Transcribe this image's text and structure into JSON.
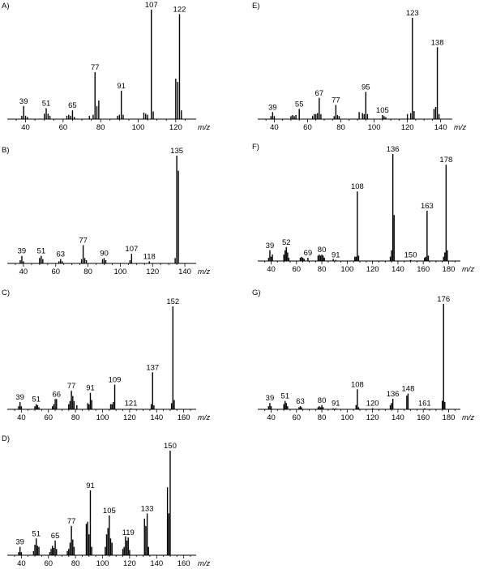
{
  "chart_data": [
    {
      "panel": "A)",
      "type": "bar",
      "xlabel": "m/z",
      "xlim": [
        32,
        130
      ],
      "xticks": [
        40,
        60,
        80,
        100,
        120
      ],
      "ylim": [
        0,
        100
      ],
      "peaks": [
        [
          38,
          3
        ],
        [
          39,
          12
        ],
        [
          40,
          3
        ],
        [
          41,
          2
        ],
        [
          50,
          5
        ],
        [
          51,
          10
        ],
        [
          52,
          5
        ],
        [
          53,
          3
        ],
        [
          62,
          3
        ],
        [
          63,
          4
        ],
        [
          64,
          3
        ],
        [
          65,
          8
        ],
        [
          66,
          2
        ],
        [
          74,
          3
        ],
        [
          76,
          4
        ],
        [
          77,
          43
        ],
        [
          78,
          12
        ],
        [
          79,
          17
        ],
        [
          89,
          3
        ],
        [
          90,
          4
        ],
        [
          91,
          26
        ],
        [
          92,
          4
        ],
        [
          103,
          6
        ],
        [
          104,
          5
        ],
        [
          105,
          4
        ],
        [
          107,
          100
        ],
        [
          108,
          7
        ],
        [
          120,
          37
        ],
        [
          121,
          34
        ],
        [
          122,
          96
        ],
        [
          123,
          8
        ]
      ],
      "labels": [
        {
          "mz": 39,
          "text": "39"
        },
        {
          "mz": 51,
          "text": "51"
        },
        {
          "mz": 65,
          "text": "65"
        },
        {
          "mz": 77,
          "text": "77"
        },
        {
          "mz": 91,
          "text": "91"
        },
        {
          "mz": 107,
          "text": "107"
        },
        {
          "mz": 122,
          "text": "122"
        }
      ]
    },
    {
      "panel": "B)",
      "type": "bar",
      "xlabel": "m/z",
      "xlim": [
        32,
        146
      ],
      "xticks": [
        40,
        60,
        80,
        100,
        120,
        140
      ],
      "ylim": [
        0,
        100
      ],
      "peaks": [
        [
          38,
          3
        ],
        [
          39,
          7
        ],
        [
          40,
          2
        ],
        [
          50,
          5
        ],
        [
          51,
          7
        ],
        [
          52,
          4
        ],
        [
          62,
          2
        ],
        [
          63,
          4
        ],
        [
          64,
          2
        ],
        [
          76,
          4
        ],
        [
          77,
          17
        ],
        [
          78,
          5
        ],
        [
          79,
          3
        ],
        [
          89,
          4
        ],
        [
          90,
          5
        ],
        [
          91,
          3
        ],
        [
          106,
          3
        ],
        [
          107,
          9
        ],
        [
          118,
          2
        ],
        [
          134,
          5
        ],
        [
          135,
          100
        ],
        [
          136,
          86
        ]
      ],
      "labels": [
        {
          "mz": 39,
          "text": "39"
        },
        {
          "mz": 51,
          "text": "51"
        },
        {
          "mz": 63,
          "text": "63"
        },
        {
          "mz": 77,
          "text": "77"
        },
        {
          "mz": 90,
          "text": "90"
        },
        {
          "mz": 107,
          "text": "107"
        },
        {
          "mz": 118,
          "text": "118"
        },
        {
          "mz": 135,
          "text": "135"
        }
      ]
    },
    {
      "panel": "C)",
      "type": "bar",
      "xlabel": "m/z",
      "xlim": [
        32,
        168
      ],
      "xticks": [
        40,
        60,
        80,
        100,
        120,
        140,
        160
      ],
      "ylim": [
        0,
        100
      ],
      "peaks": [
        [
          38,
          3
        ],
        [
          39,
          7
        ],
        [
          40,
          3
        ],
        [
          50,
          3
        ],
        [
          51,
          5
        ],
        [
          52,
          4
        ],
        [
          53,
          2
        ],
        [
          63,
          3
        ],
        [
          64,
          5
        ],
        [
          65,
          10
        ],
        [
          66,
          10
        ],
        [
          75,
          5
        ],
        [
          76,
          8
        ],
        [
          77,
          18
        ],
        [
          78,
          13
        ],
        [
          79,
          8
        ],
        [
          81,
          4
        ],
        [
          89,
          6
        ],
        [
          90,
          5
        ],
        [
          91,
          16
        ],
        [
          92,
          9
        ],
        [
          106,
          5
        ],
        [
          107,
          5
        ],
        [
          108,
          7
        ],
        [
          109,
          24
        ],
        [
          121,
          1
        ],
        [
          136,
          5
        ],
        [
          137,
          36
        ],
        [
          138,
          4
        ],
        [
          151,
          6
        ],
        [
          152,
          100
        ],
        [
          153,
          9
        ]
      ],
      "labels": [
        {
          "mz": 39,
          "text": "39"
        },
        {
          "mz": 51,
          "text": "51"
        },
        {
          "mz": 66,
          "text": "66"
        },
        {
          "mz": 77,
          "text": "77"
        },
        {
          "mz": 91,
          "text": "91"
        },
        {
          "mz": 109,
          "text": "109"
        },
        {
          "mz": 121,
          "text": "121"
        },
        {
          "mz": 137,
          "text": "137"
        },
        {
          "mz": 152,
          "text": "152"
        }
      ]
    },
    {
      "panel": "D)",
      "type": "bar",
      "xlabel": "m/z",
      "xlim": [
        32,
        168
      ],
      "xticks": [
        40,
        60,
        80,
        100,
        120,
        140,
        160
      ],
      "ylim": [
        0,
        100
      ],
      "peaks": [
        [
          38,
          3
        ],
        [
          39,
          8
        ],
        [
          40,
          3
        ],
        [
          49,
          4
        ],
        [
          50,
          10
        ],
        [
          51,
          16
        ],
        [
          52,
          9
        ],
        [
          53,
          8
        ],
        [
          61,
          3
        ],
        [
          62,
          6
        ],
        [
          63,
          9
        ],
        [
          64,
          7
        ],
        [
          65,
          14
        ],
        [
          66,
          6
        ],
        [
          74,
          4
        ],
        [
          75,
          6
        ],
        [
          76,
          12
        ],
        [
          77,
          28
        ],
        [
          78,
          15
        ],
        [
          79,
          8
        ],
        [
          88,
          30
        ],
        [
          89,
          32
        ],
        [
          90,
          20
        ],
        [
          91,
          62
        ],
        [
          92,
          8
        ],
        [
          102,
          8
        ],
        [
          103,
          20
        ],
        [
          104,
          26
        ],
        [
          105,
          38
        ],
        [
          106,
          16
        ],
        [
          107,
          12
        ],
        [
          115,
          6
        ],
        [
          116,
          8
        ],
        [
          117,
          18
        ],
        [
          118,
          14
        ],
        [
          119,
          17
        ],
        [
          120,
          5
        ],
        [
          131,
          35
        ],
        [
          132,
          28
        ],
        [
          133,
          40
        ],
        [
          134,
          8
        ],
        [
          148,
          65
        ],
        [
          149,
          40
        ],
        [
          150,
          100
        ]
      ],
      "labels": [
        {
          "mz": 39,
          "text": "39"
        },
        {
          "mz": 51,
          "text": "51"
        },
        {
          "mz": 65,
          "text": "65"
        },
        {
          "mz": 77,
          "text": "77"
        },
        {
          "mz": 91,
          "text": "91"
        },
        {
          "mz": 105,
          "text": "105"
        },
        {
          "mz": 119,
          "text": "119"
        },
        {
          "mz": 133,
          "text": "133"
        },
        {
          "mz": 150,
          "text": "150"
        }
      ]
    },
    {
      "panel": "E)",
      "type": "bar",
      "xlabel": "m/z",
      "xlim": [
        32,
        146
      ],
      "xticks": [
        40,
        60,
        80,
        100,
        120,
        140
      ],
      "ylim": [
        0,
        100
      ],
      "peaks": [
        [
          38,
          3
        ],
        [
          39,
          7
        ],
        [
          40,
          3
        ],
        [
          50,
          3
        ],
        [
          51,
          4
        ],
        [
          52,
          3
        ],
        [
          53,
          4
        ],
        [
          55,
          10
        ],
        [
          63,
          3
        ],
        [
          64,
          5
        ],
        [
          65,
          5
        ],
        [
          66,
          6
        ],
        [
          67,
          21
        ],
        [
          68,
          5
        ],
        [
          76,
          3
        ],
        [
          77,
          14
        ],
        [
          78,
          4
        ],
        [
          79,
          3
        ],
        [
          91,
          7
        ],
        [
          93,
          6
        ],
        [
          94,
          5
        ],
        [
          95,
          27
        ],
        [
          96,
          5
        ],
        [
          105,
          4
        ],
        [
          106,
          3
        ],
        [
          107,
          2
        ],
        [
          120,
          5
        ],
        [
          122,
          6
        ],
        [
          123,
          100
        ],
        [
          124,
          8
        ],
        [
          136,
          10
        ],
        [
          137,
          12
        ],
        [
          138,
          71
        ],
        [
          139,
          5
        ]
      ],
      "labels": [
        {
          "mz": 39,
          "text": "39"
        },
        {
          "mz": 55,
          "text": "55"
        },
        {
          "mz": 67,
          "text": "67"
        },
        {
          "mz": 77,
          "text": "77"
        },
        {
          "mz": 95,
          "text": "95"
        },
        {
          "mz": 105,
          "text": "105"
        },
        {
          "mz": 123,
          "text": "123"
        },
        {
          "mz": 138,
          "text": "138"
        }
      ]
    },
    {
      "panel": "F)",
      "type": "bar",
      "xlabel": "m/z",
      "xlim": [
        32,
        188
      ],
      "xticks": [
        40,
        60,
        80,
        100,
        120,
        140,
        160,
        180
      ],
      "ylim": [
        0,
        100
      ],
      "peaks": [
        [
          38,
          3
        ],
        [
          39,
          10
        ],
        [
          40,
          4
        ],
        [
          41,
          6
        ],
        [
          50,
          6
        ],
        [
          51,
          10
        ],
        [
          52,
          13
        ],
        [
          53,
          8
        ],
        [
          54,
          3
        ],
        [
          63,
          3
        ],
        [
          64,
          4
        ],
        [
          65,
          3
        ],
        [
          66,
          2
        ],
        [
          69,
          3
        ],
        [
          77,
          5
        ],
        [
          78,
          6
        ],
        [
          79,
          5
        ],
        [
          80,
          6
        ],
        [
          81,
          5
        ],
        [
          82,
          3
        ],
        [
          89,
          2
        ],
        [
          91,
          1
        ],
        [
          106,
          4
        ],
        [
          107,
          4
        ],
        [
          108,
          65
        ],
        [
          109,
          5
        ],
        [
          134,
          4
        ],
        [
          135,
          10
        ],
        [
          136,
          100
        ],
        [
          137,
          43
        ],
        [
          150,
          1
        ],
        [
          161,
          3
        ],
        [
          162,
          4
        ],
        [
          163,
          47
        ],
        [
          164,
          5
        ],
        [
          176,
          4
        ],
        [
          177,
          8
        ],
        [
          178,
          90
        ],
        [
          179,
          10
        ]
      ],
      "labels": [
        {
          "mz": 39,
          "text": "39"
        },
        {
          "mz": 52,
          "text": "52"
        },
        {
          "mz": 69,
          "text": "69"
        },
        {
          "mz": 80,
          "text": "80"
        },
        {
          "mz": 91,
          "text": "91"
        },
        {
          "mz": 108,
          "text": "108"
        },
        {
          "mz": 136,
          "text": "136"
        },
        {
          "mz": 150,
          "text": "150"
        },
        {
          "mz": 163,
          "text": "163"
        },
        {
          "mz": 178,
          "text": "178"
        }
      ]
    },
    {
      "panel": "G)",
      "type": "bar",
      "xlabel": "m/z",
      "xlim": [
        32,
        188
      ],
      "xticks": [
        40,
        60,
        80,
        100,
        120,
        140,
        160,
        180
      ],
      "ylim": [
        0,
        100
      ],
      "peaks": [
        [
          38,
          3
        ],
        [
          39,
          6
        ],
        [
          40,
          3
        ],
        [
          50,
          5
        ],
        [
          51,
          8
        ],
        [
          52,
          6
        ],
        [
          53,
          3
        ],
        [
          62,
          2
        ],
        [
          63,
          3
        ],
        [
          64,
          2
        ],
        [
          77,
          2
        ],
        [
          78,
          3
        ],
        [
          79,
          2
        ],
        [
          80,
          4
        ],
        [
          81,
          2
        ],
        [
          89,
          1
        ],
        [
          91,
          1
        ],
        [
          107,
          4
        ],
        [
          108,
          19
        ],
        [
          109,
          2
        ],
        [
          120,
          1
        ],
        [
          134,
          4
        ],
        [
          135,
          6
        ],
        [
          136,
          10
        ],
        [
          147,
          13
        ],
        [
          148,
          15
        ],
        [
          161,
          1
        ],
        [
          175,
          8
        ],
        [
          176,
          100
        ],
        [
          177,
          7
        ]
      ],
      "labels": [
        {
          "mz": 39,
          "text": "39"
        },
        {
          "mz": 51,
          "text": "51"
        },
        {
          "mz": 63,
          "text": "63"
        },
        {
          "mz": 80,
          "text": "80"
        },
        {
          "mz": 91,
          "text": "91"
        },
        {
          "mz": 108,
          "text": "108"
        },
        {
          "mz": 120,
          "text": "120"
        },
        {
          "mz": 136,
          "text": "136"
        },
        {
          "mz": 148,
          "text": "148"
        },
        {
          "mz": 161,
          "text": "161"
        },
        {
          "mz": 176,
          "text": "176"
        }
      ]
    }
  ]
}
